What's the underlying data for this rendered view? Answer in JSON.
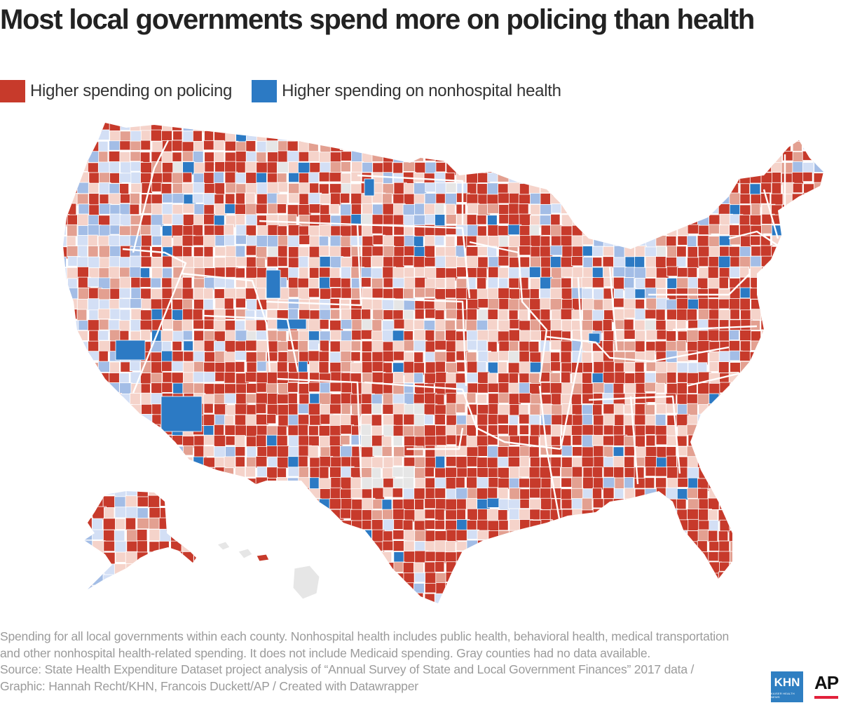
{
  "title": "Most local governments spend more on policing than health",
  "legend": [
    {
      "label": "Higher spending on policing",
      "color": "#c73a2b"
    },
    {
      "label": "Higher spending on nonhospital health",
      "color": "#2c7ac4"
    }
  ],
  "palette": {
    "police_strong": "#c73a2b",
    "police_medium": "#e3a091",
    "police_light": "#f5d3ca",
    "health_strong": "#2c7ac4",
    "health_medium": "#a3bde6",
    "health_light": "#d3dff5",
    "no_data": "#e6e6e6",
    "border": "#ffffff"
  },
  "regions": [
    {
      "name": "mainland-us",
      "category": "police_strong"
    },
    {
      "name": "alaska",
      "category": "police_strong"
    },
    {
      "name": "hawaii",
      "category": "no_data"
    }
  ],
  "notes": [
    "Spending for all local governments within each county. Nonhospital health includes public health, behavioral health, medical transportation",
    "and other nonhospital health-related spending. It does not include Medicaid spending. Gray counties had no data available.",
    "Source: State Health Expenditure Dataset project analysis of “Annual Survey of State and Local Government Finances” 2017 data /",
    "Graphic: Hannah Recht/KHN, Francois Duckett/AP / Created with Datawrapper"
  ],
  "logos": {
    "khn": "KHN",
    "khn_sub": "KAISER HEALTH NEWS",
    "ap": "AP"
  }
}
